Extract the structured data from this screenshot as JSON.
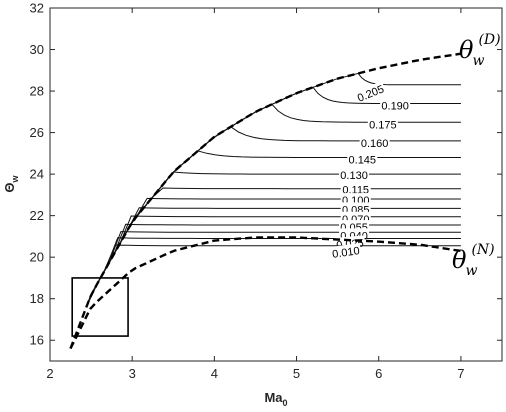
{
  "chart_data": {
    "type": "line",
    "subtype": "contour",
    "xlabel": "Ma",
    "xlabel_sub": "0",
    "ylabel": "Θ",
    "ylabel_sub": "w",
    "xlim": [
      2,
      7.5
    ],
    "ylim": [
      15,
      32
    ],
    "xticks": [
      "2",
      "3",
      "4",
      "5",
      "6",
      "7"
    ],
    "yticks": [
      "16",
      "18",
      "20",
      "22",
      "24",
      "26",
      "28",
      "30",
      "32"
    ],
    "grid": false,
    "bounds": [
      {
        "name": "θw(D)",
        "base": "θ",
        "sub": "w",
        "sup": "(D)",
        "style": "dashed",
        "points": [
          [
            2.25,
            15.6
          ],
          [
            2.5,
            18.2
          ],
          [
            3,
            21.7
          ],
          [
            3.5,
            24.1
          ],
          [
            4,
            25.8
          ],
          [
            4.5,
            27.0
          ],
          [
            5,
            27.9
          ],
          [
            5.5,
            28.6
          ],
          [
            6,
            29.1
          ],
          [
            6.5,
            29.5
          ],
          [
            7,
            29.8
          ]
        ]
      },
      {
        "name": "θw(N)",
        "base": "θ",
        "sub": "w",
        "sup": "(N)",
        "style": "dashed",
        "points": [
          [
            2.25,
            15.6
          ],
          [
            2.5,
            17.6
          ],
          [
            3,
            19.4
          ],
          [
            3.5,
            20.3
          ],
          [
            4,
            20.8
          ],
          [
            4.5,
            20.95
          ],
          [
            5,
            20.95
          ],
          [
            5.5,
            20.85
          ],
          [
            6,
            20.75
          ],
          [
            6.5,
            20.6
          ],
          [
            7,
            20.3
          ]
        ]
      }
    ],
    "contours": [
      {
        "label": "0.205",
        "level": 0.205,
        "knee_x": 5.75,
        "y_end": 28.3,
        "lbl": [
          5.9,
          27.9,
          -22
        ]
      },
      {
        "label": "0.190",
        "level": 0.19,
        "knee_x": 5.2,
        "y_end": 27.4,
        "lbl": [
          6.2,
          27.3,
          0
        ]
      },
      {
        "label": "0.175",
        "level": 0.175,
        "knee_x": 4.7,
        "y_end": 26.5,
        "lbl": [
          6.05,
          26.4,
          0
        ]
      },
      {
        "label": "0.160",
        "level": 0.16,
        "knee_x": 4.2,
        "y_end": 25.6,
        "lbl": [
          5.95,
          25.5,
          0
        ]
      },
      {
        "label": "0.145",
        "level": 0.145,
        "knee_x": 3.8,
        "y_end": 24.8,
        "lbl": [
          5.8,
          24.7,
          0
        ]
      },
      {
        "label": "0.130",
        "level": 0.13,
        "knee_x": 3.5,
        "y_end": 24.0,
        "lbl": [
          5.7,
          23.95,
          0
        ]
      },
      {
        "label": "0.115",
        "level": 0.115,
        "knee_x": 3.25,
        "y_end": 23.3,
        "lbl": [
          5.72,
          23.25,
          0
        ]
      },
      {
        "label": "0.100",
        "level": 0.1,
        "knee_x": 3.05,
        "y_end": 22.8,
        "lbl": [
          5.72,
          22.75,
          0
        ]
      },
      {
        "label": "0.085",
        "level": 0.085,
        "knee_x": 2.95,
        "y_end": 22.35,
        "lbl": [
          5.72,
          22.3,
          0
        ]
      },
      {
        "label": "0.070",
        "level": 0.07,
        "knee_x": 2.85,
        "y_end": 21.95,
        "lbl": [
          5.72,
          21.85,
          0
        ]
      },
      {
        "label": "0.055",
        "level": 0.055,
        "knee_x": 2.78,
        "y_end": 21.55,
        "lbl": [
          5.7,
          21.45,
          0
        ]
      },
      {
        "label": "0.040",
        "level": 0.04,
        "knee_x": 2.72,
        "y_end": 21.2,
        "lbl": [
          5.7,
          21.05,
          0
        ]
      },
      {
        "label": "0.025",
        "level": 0.025,
        "knee_x": 2.68,
        "y_end": 20.9,
        "lbl": [
          5.65,
          20.65,
          -5
        ]
      },
      {
        "label": "0.010",
        "level": 0.01,
        "knee_x": 2.65,
        "y_end": 20.55,
        "lbl": [
          5.6,
          20.25,
          -8
        ]
      }
    ],
    "highlight_box": {
      "x": [
        2.27,
        2.95
      ],
      "y": [
        16.2,
        19.0
      ]
    }
  }
}
